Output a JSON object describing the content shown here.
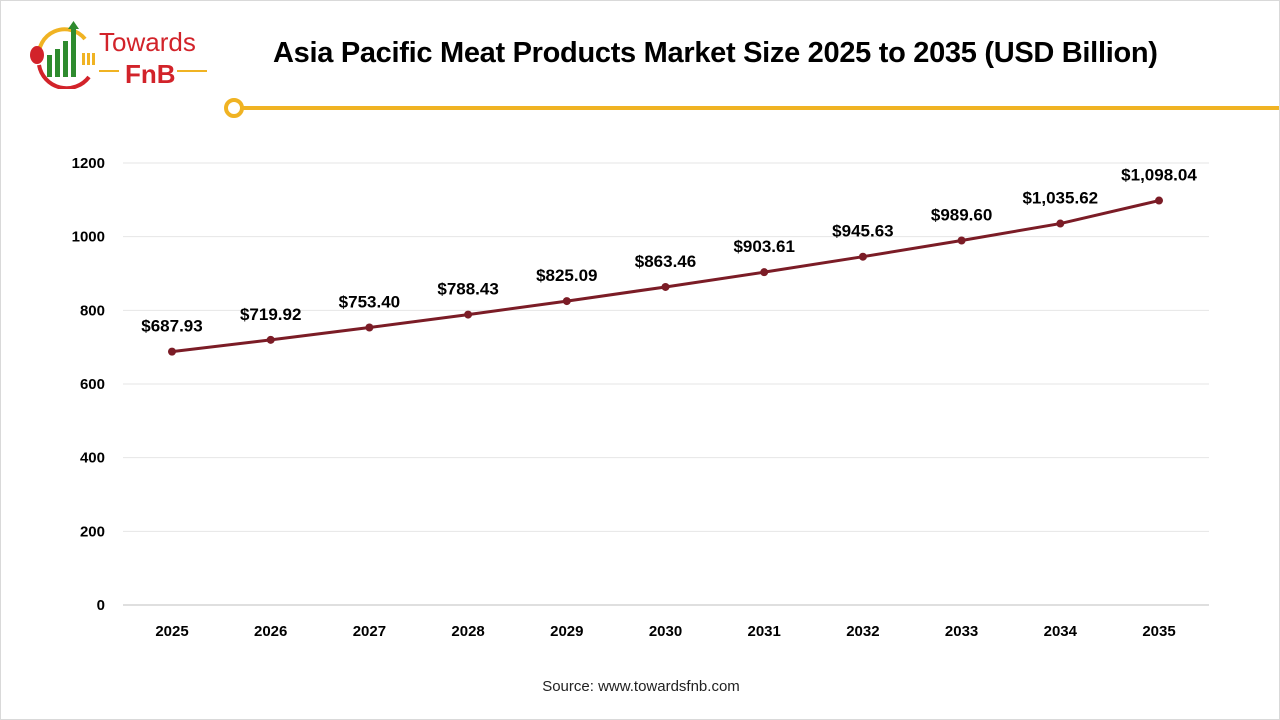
{
  "brand": {
    "name_line1": "Towards",
    "name_line2": "FnB"
  },
  "colors": {
    "line": "#7b1c26",
    "accent": "#f0b323",
    "brand_red": "#d2232a",
    "brand_green": "#2e8b2e",
    "grid": "#e6e6e6"
  },
  "source": "Source: www.towardsfnb.com",
  "chart_data": {
    "type": "line",
    "title": "Asia Pacific Meat Products Market Size 2025 to 2035 (USD Billion)",
    "categories": [
      "2025",
      "2026",
      "2027",
      "2028",
      "2029",
      "2030",
      "2031",
      "2032",
      "2033",
      "2034",
      "2035"
    ],
    "values": [
      687.93,
      719.92,
      753.4,
      788.43,
      825.09,
      863.46,
      903.61,
      945.63,
      989.6,
      1035.62,
      1098.04
    ],
    "data_labels": [
      "$687.93",
      "$719.92",
      "$753.40",
      "$788.43",
      "$825.09",
      "$863.46",
      "$903.61",
      "$945.63",
      "$989.60",
      "$1,035.62",
      "$1,098.04"
    ],
    "yticks": [
      0,
      200,
      400,
      600,
      800,
      1000,
      1200
    ],
    "ylim": [
      0,
      1200
    ],
    "grid": true,
    "legend": "none"
  }
}
